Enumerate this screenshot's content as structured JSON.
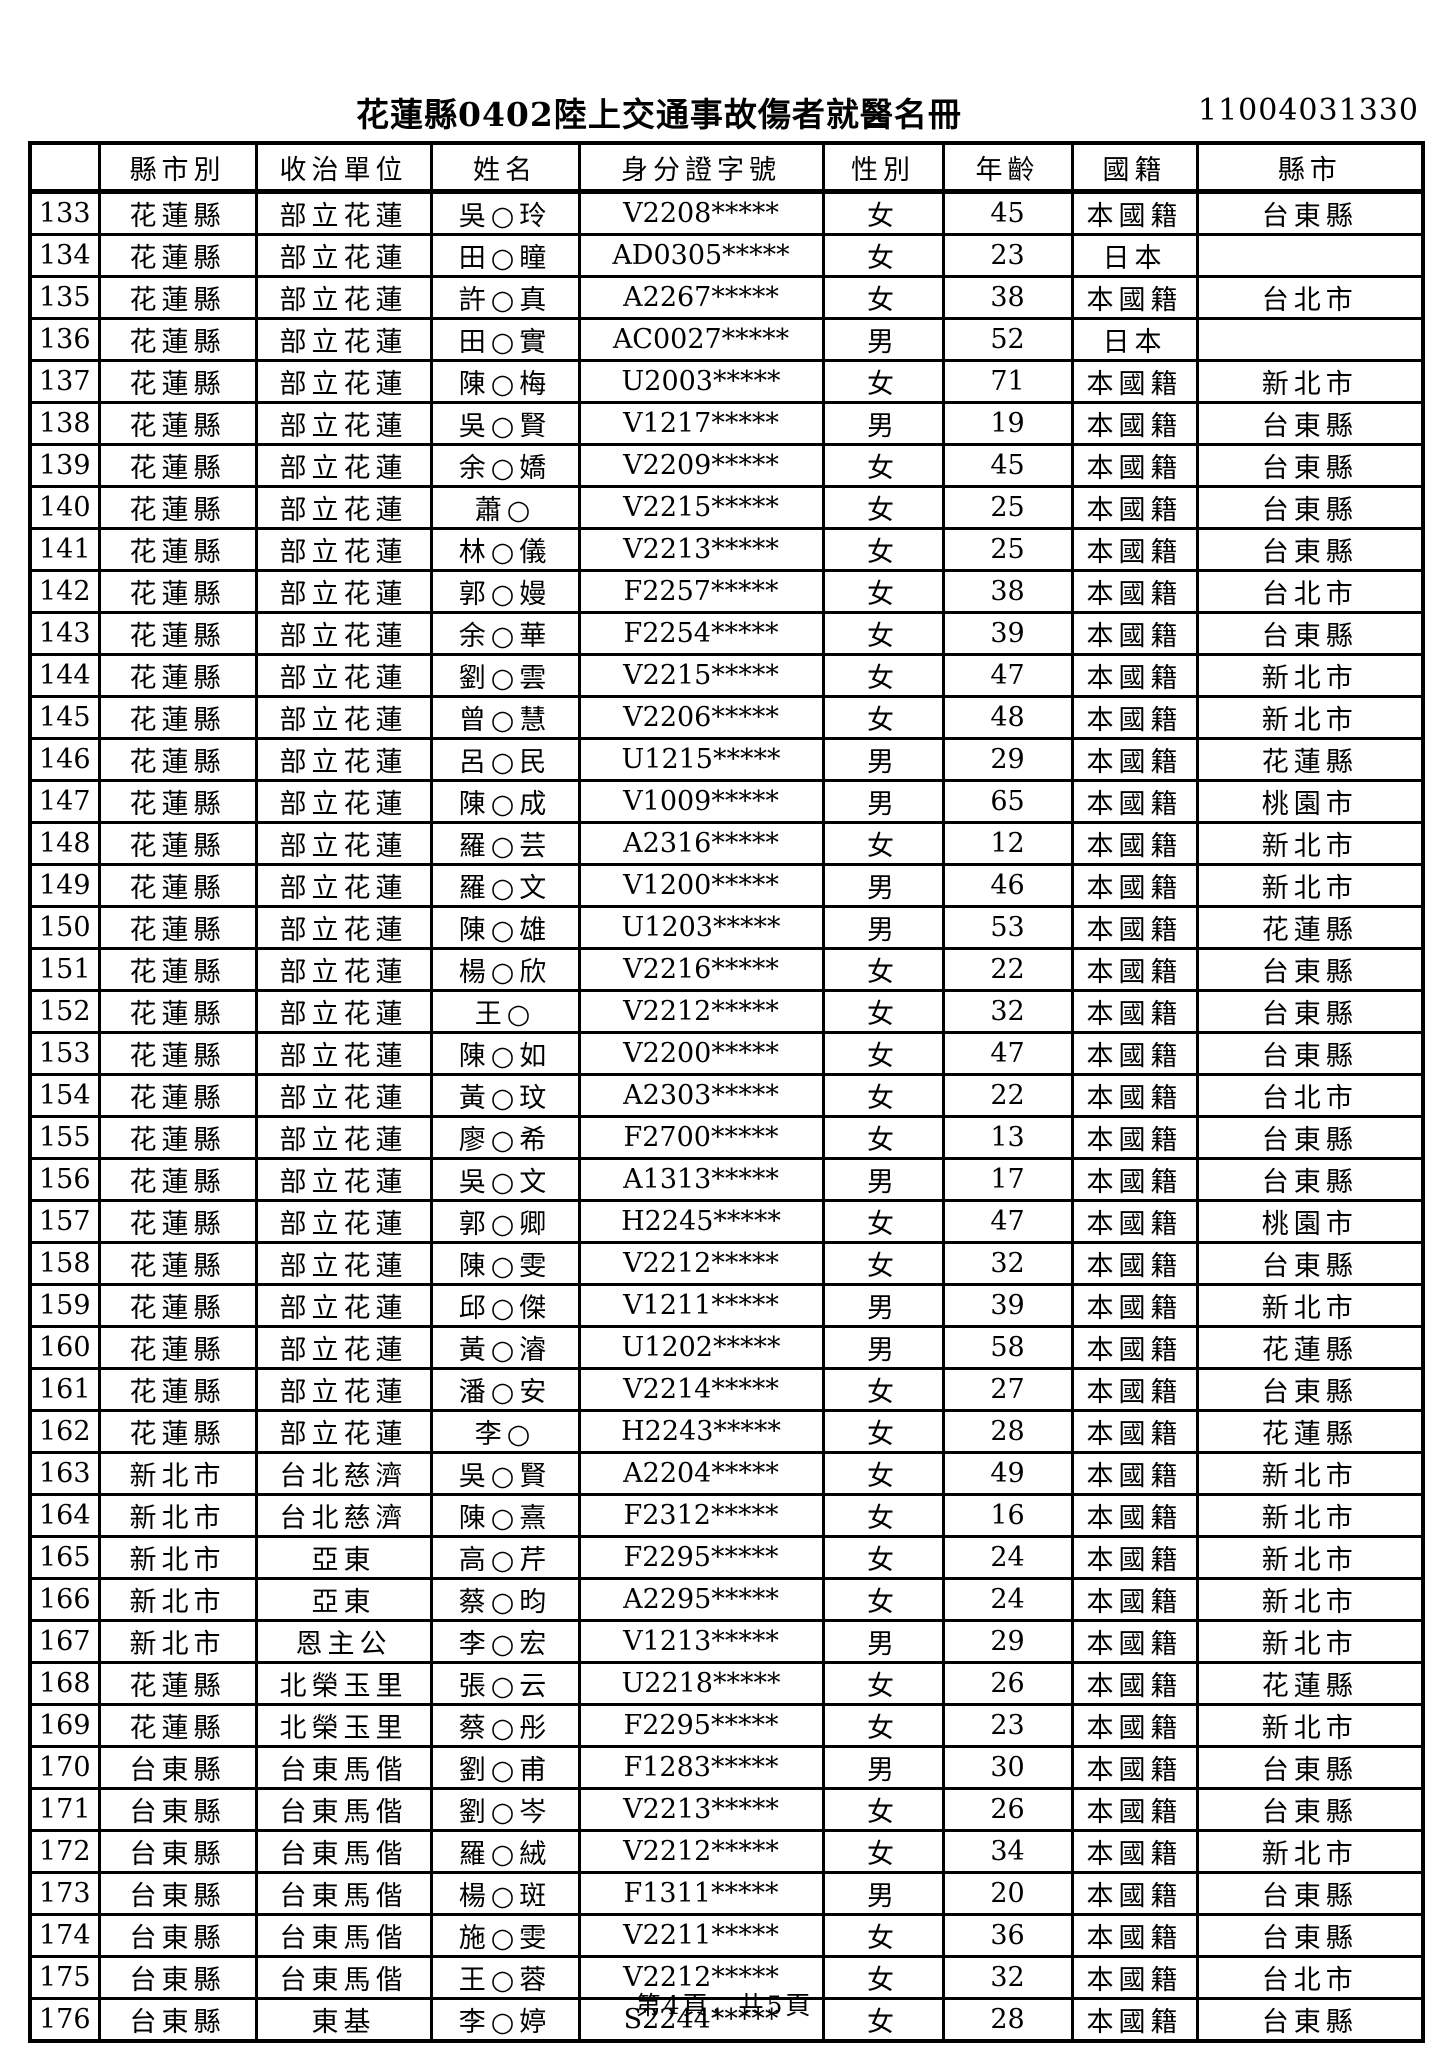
{
  "page": {
    "title": "花蓮縣0402陸上交通事故傷者就醫名冊",
    "doc_number": "11004031330",
    "footer": "第4頁，共5頁"
  },
  "table": {
    "headers": [
      "",
      "縣市別",
      "收治單位",
      "姓名",
      "身分證字號",
      "性別",
      "年齡",
      "國籍",
      "縣市"
    ],
    "rows": [
      [
        "133",
        "花蓮縣",
        "部立花蓮",
        "吳○玲",
        "V2208*****",
        "女",
        "45",
        "本國籍",
        "台東縣"
      ],
      [
        "134",
        "花蓮縣",
        "部立花蓮",
        "田○瞳",
        "AD0305*****",
        "女",
        "23",
        "日本",
        ""
      ],
      [
        "135",
        "花蓮縣",
        "部立花蓮",
        "許○真",
        "A2267*****",
        "女",
        "38",
        "本國籍",
        "台北市"
      ],
      [
        "136",
        "花蓮縣",
        "部立花蓮",
        "田○實",
        "AC0027*****",
        "男",
        "52",
        "日本",
        ""
      ],
      [
        "137",
        "花蓮縣",
        "部立花蓮",
        "陳○梅",
        "U2003*****",
        "女",
        "71",
        "本國籍",
        "新北市"
      ],
      [
        "138",
        "花蓮縣",
        "部立花蓮",
        "吳○賢",
        "V1217*****",
        "男",
        "19",
        "本國籍",
        "台東縣"
      ],
      [
        "139",
        "花蓮縣",
        "部立花蓮",
        "余○嬌",
        "V2209*****",
        "女",
        "45",
        "本國籍",
        "台東縣"
      ],
      [
        "140",
        "花蓮縣",
        "部立花蓮",
        "蕭○",
        "V2215*****",
        "女",
        "25",
        "本國籍",
        "台東縣"
      ],
      [
        "141",
        "花蓮縣",
        "部立花蓮",
        "林○儀",
        "V2213*****",
        "女",
        "25",
        "本國籍",
        "台東縣"
      ],
      [
        "142",
        "花蓮縣",
        "部立花蓮",
        "郭○嫚",
        "F2257*****",
        "女",
        "38",
        "本國籍",
        "台北市"
      ],
      [
        "143",
        "花蓮縣",
        "部立花蓮",
        "余○華",
        "F2254*****",
        "女",
        "39",
        "本國籍",
        "台東縣"
      ],
      [
        "144",
        "花蓮縣",
        "部立花蓮",
        "劉○雲",
        "V2215*****",
        "女",
        "47",
        "本國籍",
        "新北市"
      ],
      [
        "145",
        "花蓮縣",
        "部立花蓮",
        "曾○慧",
        "V2206*****",
        "女",
        "48",
        "本國籍",
        "新北市"
      ],
      [
        "146",
        "花蓮縣",
        "部立花蓮",
        "呂○民",
        "U1215*****",
        "男",
        "29",
        "本國籍",
        "花蓮縣"
      ],
      [
        "147",
        "花蓮縣",
        "部立花蓮",
        "陳○成",
        "V1009*****",
        "男",
        "65",
        "本國籍",
        "桃園市"
      ],
      [
        "148",
        "花蓮縣",
        "部立花蓮",
        "羅○芸",
        "A2316*****",
        "女",
        "12",
        "本國籍",
        "新北市"
      ],
      [
        "149",
        "花蓮縣",
        "部立花蓮",
        "羅○文",
        "V1200*****",
        "男",
        "46",
        "本國籍",
        "新北市"
      ],
      [
        "150",
        "花蓮縣",
        "部立花蓮",
        "陳○雄",
        "U1203*****",
        "男",
        "53",
        "本國籍",
        "花蓮縣"
      ],
      [
        "151",
        "花蓮縣",
        "部立花蓮",
        "楊○欣",
        "V2216*****",
        "女",
        "22",
        "本國籍",
        "台東縣"
      ],
      [
        "152",
        "花蓮縣",
        "部立花蓮",
        "王○",
        "V2212*****",
        "女",
        "32",
        "本國籍",
        "台東縣"
      ],
      [
        "153",
        "花蓮縣",
        "部立花蓮",
        "陳○如",
        "V2200*****",
        "女",
        "47",
        "本國籍",
        "台東縣"
      ],
      [
        "154",
        "花蓮縣",
        "部立花蓮",
        "黃○玟",
        "A2303*****",
        "女",
        "22",
        "本國籍",
        "台北市"
      ],
      [
        "155",
        "花蓮縣",
        "部立花蓮",
        "廖○希",
        "F2700*****",
        "女",
        "13",
        "本國籍",
        "台東縣"
      ],
      [
        "156",
        "花蓮縣",
        "部立花蓮",
        "吳○文",
        "A1313*****",
        "男",
        "17",
        "本國籍",
        "台東縣"
      ],
      [
        "157",
        "花蓮縣",
        "部立花蓮",
        "郭○卿",
        "H2245*****",
        "女",
        "47",
        "本國籍",
        "桃園市"
      ],
      [
        "158",
        "花蓮縣",
        "部立花蓮",
        "陳○雯",
        "V2212*****",
        "女",
        "32",
        "本國籍",
        "台東縣"
      ],
      [
        "159",
        "花蓮縣",
        "部立花蓮",
        "邱○傑",
        "V1211*****",
        "男",
        "39",
        "本國籍",
        "新北市"
      ],
      [
        "160",
        "花蓮縣",
        "部立花蓮",
        "黃○濬",
        "U1202*****",
        "男",
        "58",
        "本國籍",
        "花蓮縣"
      ],
      [
        "161",
        "花蓮縣",
        "部立花蓮",
        "潘○安",
        "V2214*****",
        "女",
        "27",
        "本國籍",
        "台東縣"
      ],
      [
        "162",
        "花蓮縣",
        "部立花蓮",
        "李○",
        "H2243*****",
        "女",
        "28",
        "本國籍",
        "花蓮縣"
      ],
      [
        "163",
        "新北市",
        "台北慈濟",
        "吳○賢",
        "A2204*****",
        "女",
        "49",
        "本國籍",
        "新北市"
      ],
      [
        "164",
        "新北市",
        "台北慈濟",
        "陳○熹",
        "F2312*****",
        "女",
        "16",
        "本國籍",
        "新北市"
      ],
      [
        "165",
        "新北市",
        "亞東",
        "高○芹",
        "F2295*****",
        "女",
        "24",
        "本國籍",
        "新北市"
      ],
      [
        "166",
        "新北市",
        "亞東",
        "蔡○昀",
        "A2295*****",
        "女",
        "24",
        "本國籍",
        "新北市"
      ],
      [
        "167",
        "新北市",
        "恩主公",
        "李○宏",
        "V1213*****",
        "男",
        "29",
        "本國籍",
        "新北市"
      ],
      [
        "168",
        "花蓮縣",
        "北榮玉里",
        "張○云",
        "U2218*****",
        "女",
        "26",
        "本國籍",
        "花蓮縣"
      ],
      [
        "169",
        "花蓮縣",
        "北榮玉里",
        "蔡○彤",
        "F2295*****",
        "女",
        "23",
        "本國籍",
        "新北市"
      ],
      [
        "170",
        "台東縣",
        "台東馬偕",
        "劉○甫",
        "F1283*****",
        "男",
        "30",
        "本國籍",
        "台東縣"
      ],
      [
        "171",
        "台東縣",
        "台東馬偕",
        "劉○岑",
        "V2213*****",
        "女",
        "26",
        "本國籍",
        "台東縣"
      ],
      [
        "172",
        "台東縣",
        "台東馬偕",
        "羅○絨",
        "V2212*****",
        "女",
        "34",
        "本國籍",
        "新北市"
      ],
      [
        "173",
        "台東縣",
        "台東馬偕",
        "楊○斑",
        "F1311*****",
        "男",
        "20",
        "本國籍",
        "台東縣"
      ],
      [
        "174",
        "台東縣",
        "台東馬偕",
        "施○雯",
        "V2211*****",
        "女",
        "36",
        "本國籍",
        "台東縣"
      ],
      [
        "175",
        "台東縣",
        "台東馬偕",
        "王○蓉",
        "V2212*****",
        "女",
        "32",
        "本國籍",
        "台北市"
      ],
      [
        "176",
        "台東縣",
        "東基",
        "李○婷",
        "S2244*****",
        "女",
        "28",
        "本國籍",
        "台東縣"
      ]
    ]
  }
}
